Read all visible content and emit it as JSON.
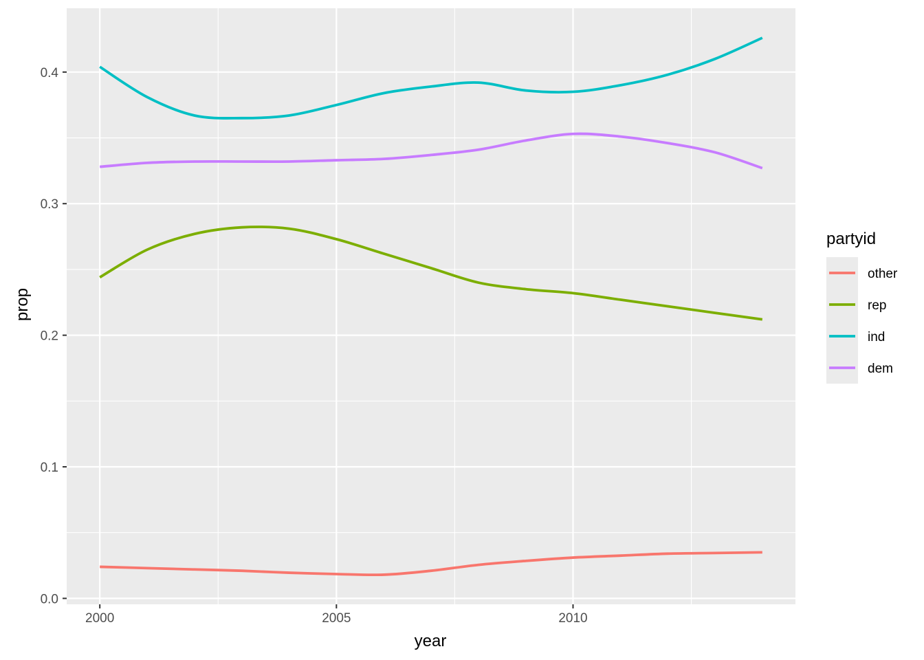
{
  "chart_data": {
    "type": "line",
    "xlabel": "year",
    "ylabel": "prop",
    "xlim": [
      1999.3,
      2014.7
    ],
    "ylim": [
      -0.0045,
      0.4485
    ],
    "x_ticks": [
      2000,
      2005,
      2010
    ],
    "x_tick_labels": [
      "2000",
      "2005",
      "2010"
    ],
    "y_ticks": [
      0.0,
      0.1,
      0.2,
      0.3,
      0.4
    ],
    "y_tick_labels": [
      "0.0",
      "0.1",
      "0.2",
      "0.3",
      "0.4"
    ],
    "grid": true,
    "panel_background": "#ebebeb",
    "grid_color": "#ffffff",
    "legend": {
      "title": "partyid",
      "position": "right",
      "entries": [
        "other",
        "rep",
        "ind",
        "dem"
      ]
    },
    "x": [
      2000,
      2001,
      2002,
      2003,
      2004,
      2005,
      2006,
      2007,
      2008,
      2009,
      2010,
      2011,
      2012,
      2013,
      2014
    ],
    "series": [
      {
        "name": "other",
        "color": "#f8766d",
        "values": [
          0.024,
          0.023,
          0.022,
          0.021,
          0.0195,
          0.0185,
          0.018,
          0.021,
          0.0255,
          0.0285,
          0.031,
          0.0325,
          0.034,
          0.0345,
          0.035
        ]
      },
      {
        "name": "rep",
        "color": "#7cae00",
        "values": [
          0.244,
          0.265,
          0.277,
          0.282,
          0.281,
          0.273,
          0.262,
          0.251,
          0.24,
          0.235,
          0.232,
          0.227,
          0.222,
          0.217,
          0.212
        ]
      },
      {
        "name": "ind",
        "color": "#00bfc4",
        "values": [
          0.404,
          0.381,
          0.367,
          0.365,
          0.367,
          0.375,
          0.384,
          0.389,
          0.392,
          0.386,
          0.385,
          0.39,
          0.398,
          0.41,
          0.426
        ]
      },
      {
        "name": "dem",
        "color": "#c77cff",
        "values": [
          0.328,
          0.331,
          0.332,
          0.332,
          0.332,
          0.333,
          0.334,
          0.337,
          0.341,
          0.348,
          0.353,
          0.351,
          0.346,
          0.339,
          0.327
        ]
      }
    ]
  }
}
